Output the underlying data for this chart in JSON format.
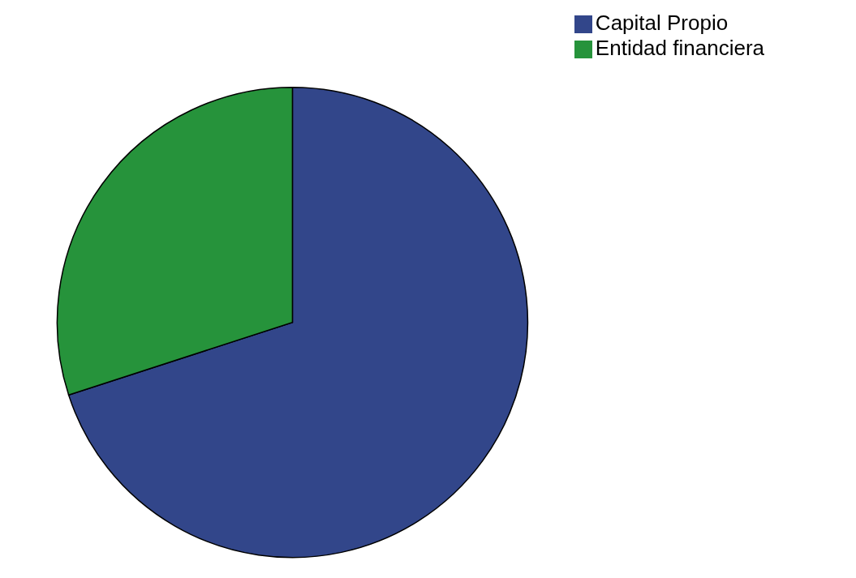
{
  "chart_data": {
    "type": "pie",
    "categories": [
      "Capital Propio",
      "Entidad financiera"
    ],
    "values": [
      70,
      30
    ],
    "colors": [
      "#32468a",
      "#26933b"
    ],
    "legend": "top right"
  }
}
